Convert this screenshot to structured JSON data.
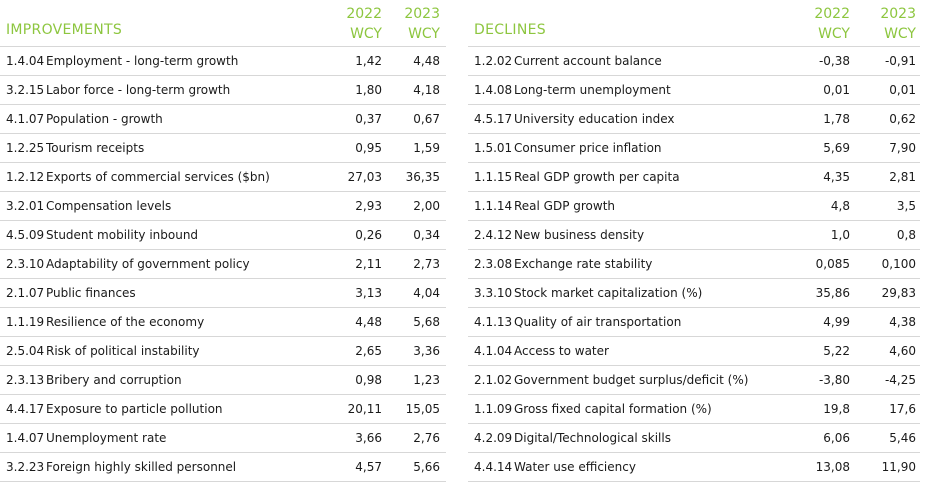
{
  "improvements": {
    "title": "IMPROVEMENTS",
    "col1": [
      "2022",
      "WCY"
    ],
    "col2": [
      "2023",
      "WCY"
    ],
    "rows": [
      {
        "code": "1.4.04",
        "label": "Employment - long-term growth",
        "v2022": "1,42",
        "v2023": "4,48"
      },
      {
        "code": "3.2.15",
        "label": "Labor force - long-term growth",
        "v2022": "1,80",
        "v2023": "4,18"
      },
      {
        "code": "4.1.07",
        "label": "Population - growth",
        "v2022": "0,37",
        "v2023": "0,67"
      },
      {
        "code": "1.2.25",
        "label": "Tourism receipts",
        "v2022": "0,95",
        "v2023": "1,59"
      },
      {
        "code": "1.2.12",
        "label": "Exports of commercial services ($bn)",
        "v2022": "27,03",
        "v2023": "36,35"
      },
      {
        "code": "3.2.01",
        "label": "Compensation levels",
        "v2022": "2,93",
        "v2023": "2,00"
      },
      {
        "code": "4.5.09",
        "label": "Student mobility inbound",
        "v2022": "0,26",
        "v2023": "0,34"
      },
      {
        "code": "2.3.10",
        "label": "Adaptability of government policy",
        "v2022": "2,11",
        "v2023": "2,73"
      },
      {
        "code": "2.1.07",
        "label": "Public finances",
        "v2022": "3,13",
        "v2023": "4,04"
      },
      {
        "code": "1.1.19",
        "label": "Resilience of the economy",
        "v2022": "4,48",
        "v2023": "5,68"
      },
      {
        "code": "2.5.04",
        "label": "Risk of political instability",
        "v2022": "2,65",
        "v2023": "3,36"
      },
      {
        "code": "2.3.13",
        "label": "Bribery and corruption",
        "v2022": "0,98",
        "v2023": "1,23"
      },
      {
        "code": "4.4.17",
        "label": "Exposure to particle pollution",
        "v2022": "20,11",
        "v2023": "15,05"
      },
      {
        "code": "1.4.07",
        "label": "Unemployment rate",
        "v2022": "3,66",
        "v2023": "2,76"
      },
      {
        "code": "3.2.23",
        "label": "Foreign highly skilled personnel",
        "v2022": "4,57",
        "v2023": "5,66"
      }
    ]
  },
  "declines": {
    "title": "DECLINES",
    "col1": [
      "2022",
      "WCY"
    ],
    "col2": [
      "2023",
      "WCY"
    ],
    "rows": [
      {
        "code": "1.2.02",
        "label": "Current account balance",
        "v2022": "-0,38",
        "v2023": "-0,91"
      },
      {
        "code": "1.4.08",
        "label": "Long-term unemployment",
        "v2022": "0,01",
        "v2023": "0,01"
      },
      {
        "code": "4.5.17",
        "label": "University education index",
        "v2022": "1,78",
        "v2023": "0,62"
      },
      {
        "code": "1.5.01",
        "label": "Consumer price inflation",
        "v2022": "5,69",
        "v2023": "7,90"
      },
      {
        "code": "1.1.15",
        "label": "Real GDP growth per capita",
        "v2022": "4,35",
        "v2023": "2,81"
      },
      {
        "code": "1.1.14",
        "label": "Real GDP growth",
        "v2022": "4,8",
        "v2023": "3,5"
      },
      {
        "code": "2.4.12",
        "label": "New business density",
        "v2022": "1,0",
        "v2023": "0,8"
      },
      {
        "code": "2.3.08",
        "label": "Exchange rate stability",
        "v2022": "0,085",
        "v2023": "0,100"
      },
      {
        "code": "3.3.10",
        "label": "Stock market capitalization (%)",
        "v2022": "35,86",
        "v2023": "29,83"
      },
      {
        "code": "4.1.13",
        "label": "Quality of air transportation",
        "v2022": "4,99",
        "v2023": "4,38"
      },
      {
        "code": "4.1.04",
        "label": "Access to water",
        "v2022": "5,22",
        "v2023": "4,60"
      },
      {
        "code": "2.1.02",
        "label": "Government budget surplus/deficit (%)",
        "v2022": "-3,80",
        "v2023": "-4,25"
      },
      {
        "code": "1.1.09",
        "label": "Gross fixed capital formation (%)",
        "v2022": "19,8",
        "v2023": "17,6"
      },
      {
        "code": "4.2.09",
        "label": "Digital/Technological skills",
        "v2022": "6,06",
        "v2023": "5,46"
      },
      {
        "code": "4.4.14",
        "label": "Water use efficiency",
        "v2022": "13,08",
        "v2023": "11,90"
      }
    ]
  }
}
